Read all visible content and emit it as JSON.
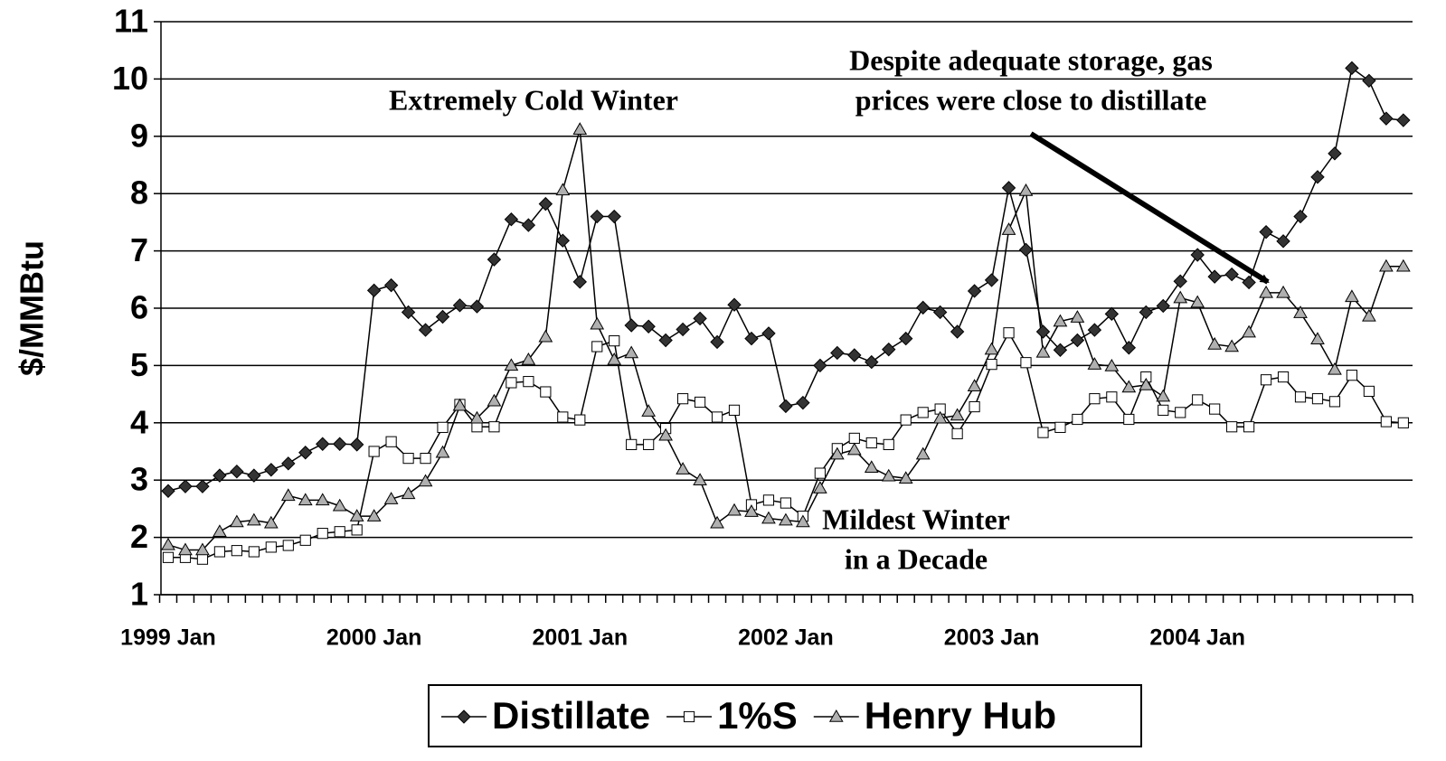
{
  "chart_data": {
    "type": "line",
    "y_label": "$/MMBtu",
    "categories": [
      "1999 Jan",
      null,
      null,
      null,
      null,
      null,
      null,
      null,
      null,
      null,
      null,
      null,
      "2000 Jan",
      null,
      null,
      null,
      null,
      null,
      null,
      null,
      null,
      null,
      null,
      null,
      "2001 Jan",
      null,
      null,
      null,
      null,
      null,
      null,
      null,
      null,
      null,
      null,
      null,
      "2002 Jan",
      null,
      null,
      null,
      null,
      null,
      null,
      null,
      null,
      null,
      null,
      null,
      "2003 Jan",
      null,
      null,
      null,
      null,
      null,
      null,
      null,
      null,
      null,
      null,
      null,
      "2004 Jan",
      null,
      null,
      null,
      null,
      null,
      null,
      null,
      null,
      null,
      null,
      null,
      null
    ],
    "ylim": [
      1,
      11
    ],
    "yticks": [
      1,
      2,
      3,
      4,
      5,
      6,
      7,
      8,
      9,
      10,
      11
    ],
    "grid": true,
    "legend": "bottom",
    "series": [
      {
        "name": "Distillate",
        "color": "#333333",
        "marker": "diamond",
        "values": [
          2.81,
          2.89,
          2.89,
          3.08,
          3.15,
          3.08,
          3.18,
          3.29,
          3.48,
          3.63,
          3.63,
          3.62,
          6.31,
          6.4,
          5.93,
          5.62,
          5.85,
          6.05,
          6.03,
          6.85,
          7.55,
          7.45,
          7.82,
          7.18,
          6.46,
          7.6,
          7.6,
          5.7,
          5.68,
          5.44,
          5.63,
          5.82,
          5.41,
          6.06,
          5.47,
          5.56,
          4.29,
          4.35,
          5.0,
          5.22,
          5.18,
          5.06,
          5.28,
          5.47,
          6.01,
          5.93,
          5.59,
          6.3,
          6.49,
          8.1,
          7.02,
          5.59,
          5.27,
          5.44,
          5.62,
          5.9,
          5.31,
          5.93,
          6.04,
          6.47,
          6.93,
          6.55,
          6.59,
          6.45,
          7.33,
          7.17,
          7.6,
          8.29,
          8.7,
          10.19,
          9.97,
          9.31,
          9.28
        ]
      },
      {
        "name": "1%S",
        "color": "#ffffff",
        "marker": "square",
        "values": [
          1.65,
          1.65,
          1.62,
          1.75,
          1.77,
          1.75,
          1.83,
          1.86,
          1.95,
          2.07,
          2.1,
          2.13,
          3.5,
          3.67,
          3.38,
          3.38,
          3.92,
          4.32,
          3.93,
          3.93,
          4.7,
          4.72,
          4.54,
          4.1,
          4.05,
          5.33,
          5.43,
          3.62,
          3.62,
          3.9,
          4.42,
          4.36,
          4.1,
          4.22,
          2.57,
          2.65,
          2.6,
          2.37,
          3.12,
          3.55,
          3.73,
          3.65,
          3.62,
          4.05,
          4.18,
          4.24,
          3.81,
          4.28,
          5.02,
          5.57,
          5.05,
          3.83,
          3.92,
          4.06,
          4.42,
          4.45,
          4.06,
          4.8,
          4.22,
          4.18,
          4.4,
          4.24,
          3.93,
          3.93,
          4.75,
          4.8,
          4.45,
          4.42,
          4.37,
          4.83,
          4.55,
          4.02,
          4.0
        ]
      },
      {
        "name": "Henry Hub",
        "color": "#b0b0b0",
        "marker": "triangle",
        "values": [
          1.87,
          1.78,
          1.78,
          2.1,
          2.27,
          2.3,
          2.25,
          2.73,
          2.65,
          2.65,
          2.55,
          2.37,
          2.37,
          2.67,
          2.76,
          2.98,
          3.48,
          4.3,
          4.08,
          4.38,
          5.0,
          5.1,
          5.5,
          8.06,
          9.12,
          5.72,
          5.1,
          5.22,
          4.2,
          3.78,
          3.19,
          3.0,
          2.25,
          2.47,
          2.45,
          2.33,
          2.3,
          2.27,
          2.86,
          3.45,
          3.53,
          3.22,
          3.07,
          3.03,
          3.45,
          4.08,
          4.13,
          4.64,
          5.28,
          7.37,
          8.05,
          5.23,
          5.77,
          5.84,
          5.02,
          4.99,
          4.62,
          4.66,
          4.46,
          6.18,
          6.1,
          5.37,
          5.33,
          5.58,
          6.27,
          6.27,
          5.92,
          5.46,
          4.93,
          6.2,
          5.86,
          6.73,
          6.73
        ]
      }
    ],
    "annotations": [
      {
        "lines": [
          "Extremely Cold Winter"
        ]
      },
      {
        "lines": [
          "Despite adequate storage, gas",
          "prices were close to distillate"
        ]
      },
      {
        "lines": [
          "Mildest Winter",
          "in a Decade"
        ]
      }
    ]
  }
}
